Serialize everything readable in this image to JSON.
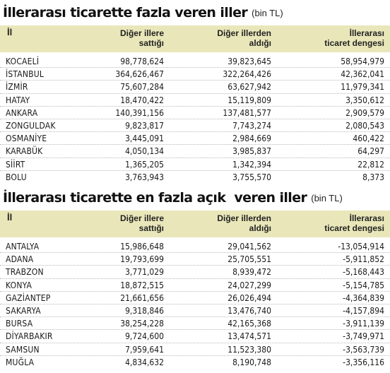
{
  "top_section": {
    "title": "İllerarası ticarette fazla veren iller",
    "unit": "(bin TL)",
    "headers": {
      "il": "İl",
      "sold_line1": "Diğer illere",
      "sold_line2": "sattığı",
      "bought_line1": "Diğer illerden",
      "bought_line2": "aldığı",
      "balance_line1": "İllerarası",
      "balance_line2": "ticaret dengesi"
    },
    "rows": [
      {
        "il": "KOCAELİ",
        "sold": "98,778,624",
        "bought": "39,823,645",
        "balance": "58,954,979"
      },
      {
        "il": "İSTANBUL",
        "sold": "364,626,467",
        "bought": "322,264,426",
        "balance": "42,362,041"
      },
      {
        "il": "İZMİR",
        "sold": "75,607,284",
        "bought": "63,627,942",
        "balance": "11,979,341"
      },
      {
        "il": "HATAY",
        "sold": "18,470,422",
        "bought": "15,119,809",
        "balance": "3,350,612"
      },
      {
        "il": "ANKARA",
        "sold": "140,391,156",
        "bought": "137,481,577",
        "balance": "2,909,579"
      },
      {
        "il": "ZONGULDAK",
        "sold": "9,823,817",
        "bought": "7,743,274",
        "balance": "2,080,543"
      },
      {
        "il": "OSMANİYE",
        "sold": "3,445,091",
        "bought": "2,984,669",
        "balance": "460,422"
      },
      {
        "il": "KARABÜK",
        "sold": "4,050,134",
        "bought": "3,985,837",
        "balance": "64,297"
      },
      {
        "il": "SİİRT",
        "sold": "1,365,205",
        "bought": "1,342,394",
        "balance": "22,812"
      },
      {
        "il": "BOLU",
        "sold": "3,763,943",
        "bought": "3,755,570",
        "balance": "8,373"
      }
    ]
  },
  "bottom_section": {
    "title": "İllerarası ticarette en fazla açık  veren iller",
    "unit": "(bin TL)",
    "headers": {
      "il": "İl",
      "sold_line1": "Diğer illere",
      "sold_line2": "sattığı",
      "bought_line1": "Diğer illerden",
      "bought_line2": "aldığı",
      "balance_line1": "İllerarası",
      "balance_line2": "ticaret dengesi"
    },
    "rows": [
      {
        "il": "ANTALYA",
        "sold": "15,986,648",
        "bought": "29,041,562",
        "balance": "-13,054,914"
      },
      {
        "il": "ADANA",
        "sold": "19,793,699",
        "bought": "25,705,551",
        "balance": "-5,911,852"
      },
      {
        "il": "TRABZON",
        "sold": "3,771,029",
        "bought": "8,939,472",
        "balance": "-5,168,443"
      },
      {
        "il": "KONYA",
        "sold": "18,872,515",
        "bought": "24,027,299",
        "balance": "-5,154,785"
      },
      {
        "il": "GAZİANTEP",
        "sold": "21,661,656",
        "bought": "26,026,494",
        "balance": "-4,364,839"
      },
      {
        "il": "SAKARYA",
        "sold": "9,318,846",
        "bought": "13,476,740",
        "balance": "-4,157,894"
      },
      {
        "il": "BURSA",
        "sold": "38,254,228",
        "bought": "42,165,368",
        "balance": "-3,911,139"
      },
      {
        "il": "DİYARBAKIR",
        "sold": "9,724,600",
        "bought": "13,474,571",
        "balance": "-3,749,971"
      },
      {
        "il": "SAMSUN",
        "sold": "7,959,641",
        "bought": "11,523,380",
        "balance": "-3,563,739"
      },
      {
        "il": "MUĞLA",
        "sold": "4,834,632",
        "bought": "8,190,748",
        "balance": "-3,356,116"
      }
    ]
  }
}
